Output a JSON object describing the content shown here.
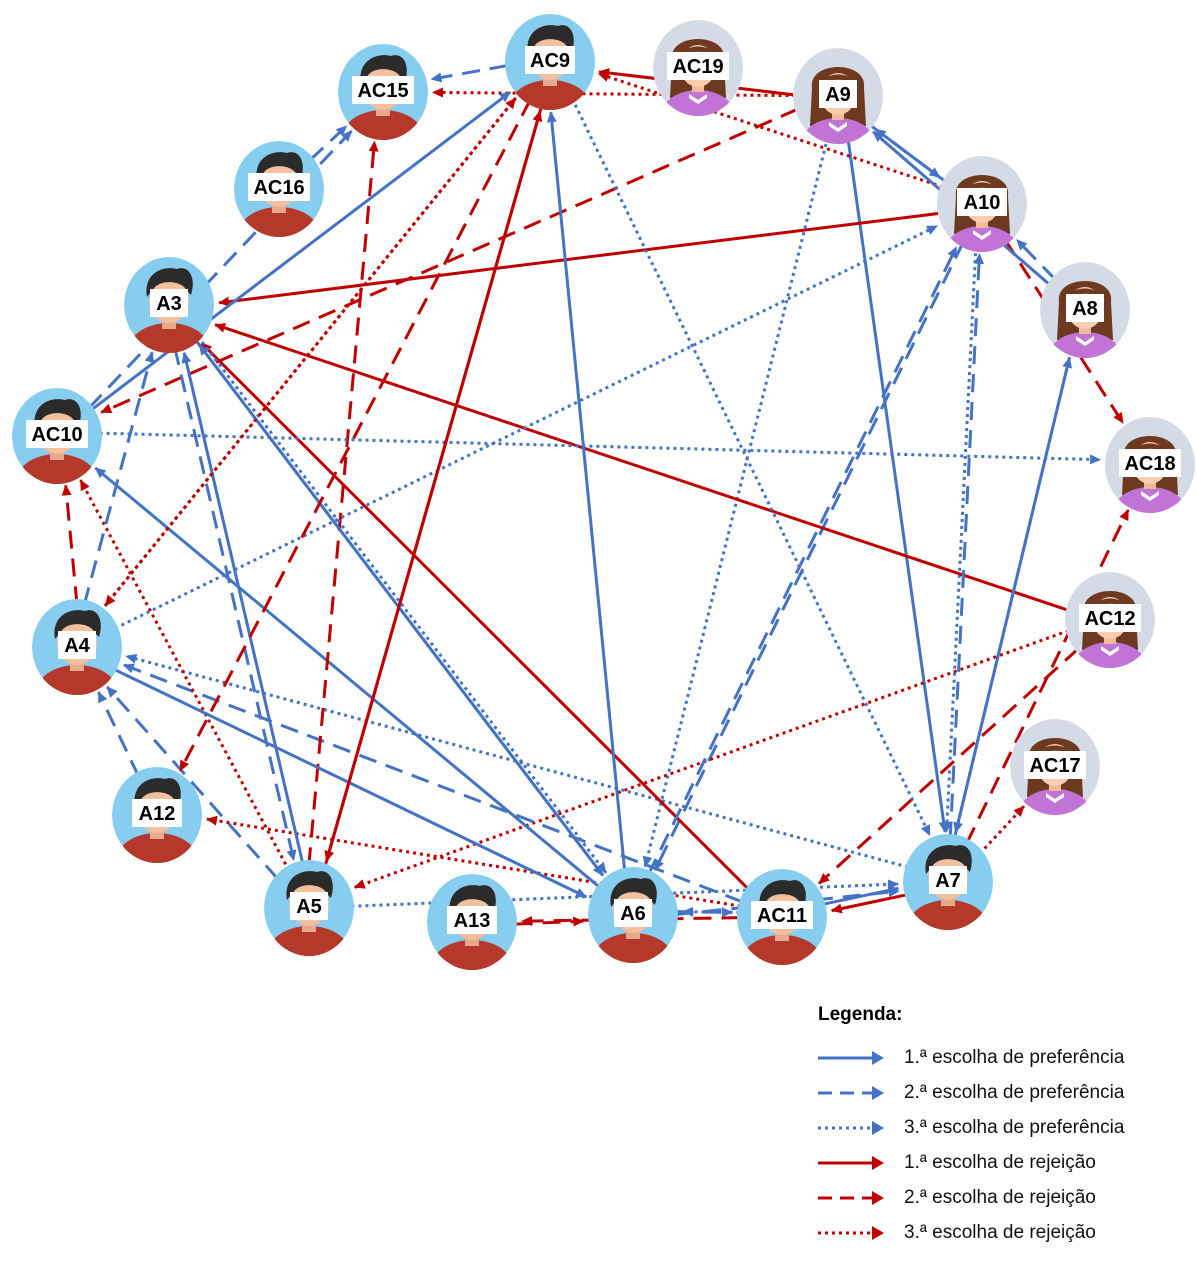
{
  "legend": {
    "title": "Legenda:",
    "items": [
      {
        "label": "1.ª escolha de preferência",
        "color": "#4472c4",
        "style": "solid"
      },
      {
        "label": "2.ª escolha de preferência",
        "color": "#4472c4",
        "style": "dashed"
      },
      {
        "label": "3.ª escolha de preferência",
        "color": "#4472c4",
        "style": "dotted"
      },
      {
        "label": "1.ª escolha de rejeição",
        "color": "#c00000",
        "style": "solid"
      },
      {
        "label": "2.ª escolha de rejeição",
        "color": "#c00000",
        "style": "dashed"
      },
      {
        "label": "3.ª escolha de rejeição",
        "color": "#c00000",
        "style": "dotted"
      }
    ]
  },
  "colors": {
    "preference": "#4472c4",
    "rejection": "#c00000",
    "boy_bg": "#87cdf0",
    "girl_bg": "#d5dbe6",
    "shirt": "#b5392b",
    "dress": "#c274d6"
  },
  "nodes": [
    {
      "id": "AC9",
      "label": "AC9",
      "gender": "boy"
    },
    {
      "id": "AC19",
      "label": "AC19",
      "gender": "girl"
    },
    {
      "id": "A9",
      "label": "A9",
      "gender": "girl"
    },
    {
      "id": "A10",
      "label": "A10",
      "gender": "girl"
    },
    {
      "id": "A8",
      "label": "A8",
      "gender": "girl"
    },
    {
      "id": "AC18",
      "label": "AC18",
      "gender": "girl"
    },
    {
      "id": "AC12",
      "label": "AC12",
      "gender": "girl"
    },
    {
      "id": "AC17",
      "label": "AC17",
      "gender": "girl"
    },
    {
      "id": "A7",
      "label": "A7",
      "gender": "boy"
    },
    {
      "id": "AC11",
      "label": "AC11",
      "gender": "boy"
    },
    {
      "id": "A6",
      "label": "A6",
      "gender": "boy"
    },
    {
      "id": "A13",
      "label": "A13",
      "gender": "boy"
    },
    {
      "id": "A5",
      "label": "A5",
      "gender": "boy"
    },
    {
      "id": "A12",
      "label": "A12",
      "gender": "boy"
    },
    {
      "id": "A4",
      "label": "A4",
      "gender": "boy"
    },
    {
      "id": "AC10",
      "label": "AC10",
      "gender": "boy"
    },
    {
      "id": "A3",
      "label": "A3",
      "gender": "boy"
    },
    {
      "id": "AC16",
      "label": "AC16",
      "gender": "boy"
    },
    {
      "id": "AC15",
      "label": "AC15",
      "gender": "boy"
    }
  ],
  "edges": [
    {
      "from": "A9",
      "to": "AC9",
      "type": "rejection",
      "rank": 1
    },
    {
      "from": "A9",
      "to": "AC15",
      "type": "rejection",
      "rank": 3
    },
    {
      "from": "A9",
      "to": "AC10",
      "type": "rejection",
      "rank": 2
    },
    {
      "from": "A9",
      "to": "A7",
      "type": "preference",
      "rank": 1
    },
    {
      "from": "A9",
      "to": "A6",
      "type": "preference",
      "rank": 3
    },
    {
      "from": "A9",
      "to": "A10",
      "type": "preference",
      "rank": 2
    },
    {
      "from": "A10",
      "to": "A3",
      "type": "rejection",
      "rank": 1
    },
    {
      "from": "A10",
      "to": "AC18",
      "type": "rejection",
      "rank": 2
    },
    {
      "from": "A10",
      "to": "AC9",
      "type": "rejection",
      "rank": 3
    },
    {
      "from": "A10",
      "to": "A9",
      "type": "preference",
      "rank": 1
    },
    {
      "from": "A10",
      "to": "A6",
      "type": "preference",
      "rank": 2
    },
    {
      "from": "A10",
      "to": "A7",
      "type": "preference",
      "rank": 3
    },
    {
      "from": "A8",
      "to": "A9",
      "type": "preference",
      "rank": 1
    },
    {
      "from": "A8",
      "to": "A10",
      "type": "preference",
      "rank": 2
    },
    {
      "from": "A8",
      "to": "A7",
      "type": "preference",
      "rank": 3
    },
    {
      "from": "AC12",
      "to": "A3",
      "type": "rejection",
      "rank": 1
    },
    {
      "from": "AC12",
      "to": "AC11",
      "type": "rejection",
      "rank": 2
    },
    {
      "from": "AC12",
      "to": "A5",
      "type": "rejection",
      "rank": 3
    },
    {
      "from": "A7",
      "to": "AC11",
      "type": "rejection",
      "rank": 1
    },
    {
      "from": "A7",
      "to": "AC18",
      "type": "rejection",
      "rank": 2
    },
    {
      "from": "A7",
      "to": "AC17",
      "type": "rejection",
      "rank": 3
    },
    {
      "from": "A7",
      "to": "A8",
      "type": "preference",
      "rank": 1
    },
    {
      "from": "A7",
      "to": "A10",
      "type": "preference",
      "rank": 2
    },
    {
      "from": "A7",
      "to": "A4",
      "type": "preference",
      "rank": 3
    },
    {
      "from": "AC11",
      "to": "A3",
      "type": "rejection",
      "rank": 1
    },
    {
      "from": "AC11",
      "to": "A13",
      "type": "rejection",
      "rank": 2
    },
    {
      "from": "AC11",
      "to": "A12",
      "type": "rejection",
      "rank": 3
    },
    {
      "from": "AC11",
      "to": "A7",
      "type": "preference",
      "rank": 1
    },
    {
      "from": "AC11",
      "to": "A4",
      "type": "preference",
      "rank": 2
    },
    {
      "from": "AC11",
      "to": "A6",
      "type": "preference",
      "rank": 3
    },
    {
      "from": "A6",
      "to": "AC9",
      "type": "preference",
      "rank": 1
    },
    {
      "from": "A6",
      "to": "AC10",
      "type": "preference",
      "rank": 1
    },
    {
      "from": "A6",
      "to": "A7",
      "type": "preference",
      "rank": 2
    },
    {
      "from": "A6",
      "to": "A10",
      "type": "preference",
      "rank": 2
    },
    {
      "from": "A6",
      "to": "A3",
      "type": "preference",
      "rank": 3
    },
    {
      "from": "A5",
      "to": "AC9",
      "type": "rejection",
      "rank": 1
    },
    {
      "from": "A5",
      "to": "AC15",
      "type": "rejection",
      "rank": 2
    },
    {
      "from": "A5",
      "to": "AC10",
      "type": "rejection",
      "rank": 3
    },
    {
      "from": "A5",
      "to": "A3",
      "type": "preference",
      "rank": 1
    },
    {
      "from": "A5",
      "to": "A4",
      "type": "preference",
      "rank": 2
    },
    {
      "from": "A5",
      "to": "A7",
      "type": "preference",
      "rank": 3
    },
    {
      "from": "A4",
      "to": "A6",
      "type": "preference",
      "rank": 1
    },
    {
      "from": "A4",
      "to": "A3",
      "type": "preference",
      "rank": 2
    },
    {
      "from": "A4",
      "to": "A10",
      "type": "preference",
      "rank": 3
    },
    {
      "from": "A4",
      "to": "AC10",
      "type": "rejection",
      "rank": 2
    },
    {
      "from": "A4",
      "to": "AC9",
      "type": "rejection",
      "rank": 3
    },
    {
      "from": "A3",
      "to": "A6",
      "type": "preference",
      "rank": 1
    },
    {
      "from": "A3",
      "to": "A5",
      "type": "preference",
      "rank": 2
    },
    {
      "from": "A3",
      "to": "A6",
      "type": "preference",
      "rank": 3
    },
    {
      "from": "AC10",
      "to": "AC9",
      "type": "preference",
      "rank": 1
    },
    {
      "from": "AC10",
      "to": "AC15",
      "type": "preference",
      "rank": 2
    },
    {
      "from": "AC10",
      "to": "AC18",
      "type": "preference",
      "rank": 3
    },
    {
      "from": "AC16",
      "to": "AC15",
      "type": "preference",
      "rank": 2
    },
    {
      "from": "AC9",
      "to": "AC15",
      "type": "preference",
      "rank": 2
    },
    {
      "from": "AC9",
      "to": "A5",
      "type": "rejection",
      "rank": 1
    },
    {
      "from": "AC9",
      "to": "A12",
      "type": "rejection",
      "rank": 2
    },
    {
      "from": "AC9",
      "to": "A4",
      "type": "rejection",
      "rank": 3
    },
    {
      "from": "AC9",
      "to": "A7",
      "type": "preference",
      "rank": 3
    },
    {
      "from": "A12",
      "to": "A4",
      "type": "preference",
      "rank": 2
    },
    {
      "from": "A13",
      "to": "A6",
      "type": "rejection",
      "rank": 2
    },
    {
      "from": "A6",
      "to": "AC11",
      "type": "preference",
      "rank": 2
    }
  ]
}
